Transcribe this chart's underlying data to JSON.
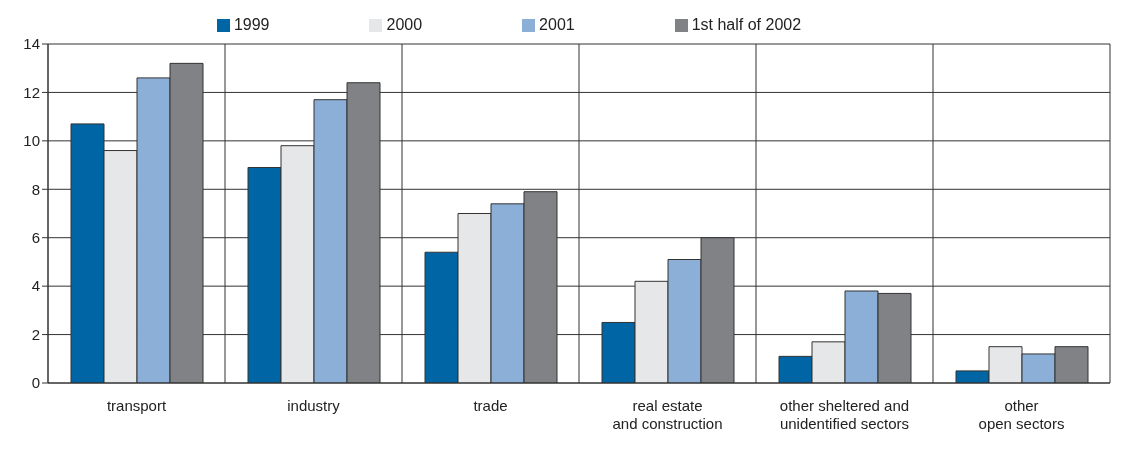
{
  "chart_data": {
    "type": "bar",
    "categories": [
      "transport",
      "industry",
      "trade",
      "real estate\nand construction",
      "other sheltered and\nunidentified sectors",
      "other\nopen sectors"
    ],
    "series": [
      {
        "name": "1999",
        "color": "#0065a4",
        "values": [
          10.7,
          8.9,
          5.4,
          2.5,
          1.1,
          0.5
        ]
      },
      {
        "name": "2000",
        "color": "#e6e7e9",
        "values": [
          9.6,
          9.8,
          7.0,
          4.2,
          1.7,
          1.5
        ]
      },
      {
        "name": "2001",
        "color": "#8cafd7",
        "values": [
          12.6,
          11.7,
          7.4,
          5.1,
          3.8,
          1.2
        ]
      },
      {
        "name": "1st half of 2002",
        "color": "#818286",
        "values": [
          13.2,
          12.4,
          7.9,
          6.0,
          3.7,
          1.5
        ]
      }
    ],
    "ylim": [
      0,
      14
    ],
    "yticks": [
      0,
      2,
      4,
      6,
      8,
      10,
      12,
      14
    ],
    "grid": true,
    "legend": "top"
  }
}
